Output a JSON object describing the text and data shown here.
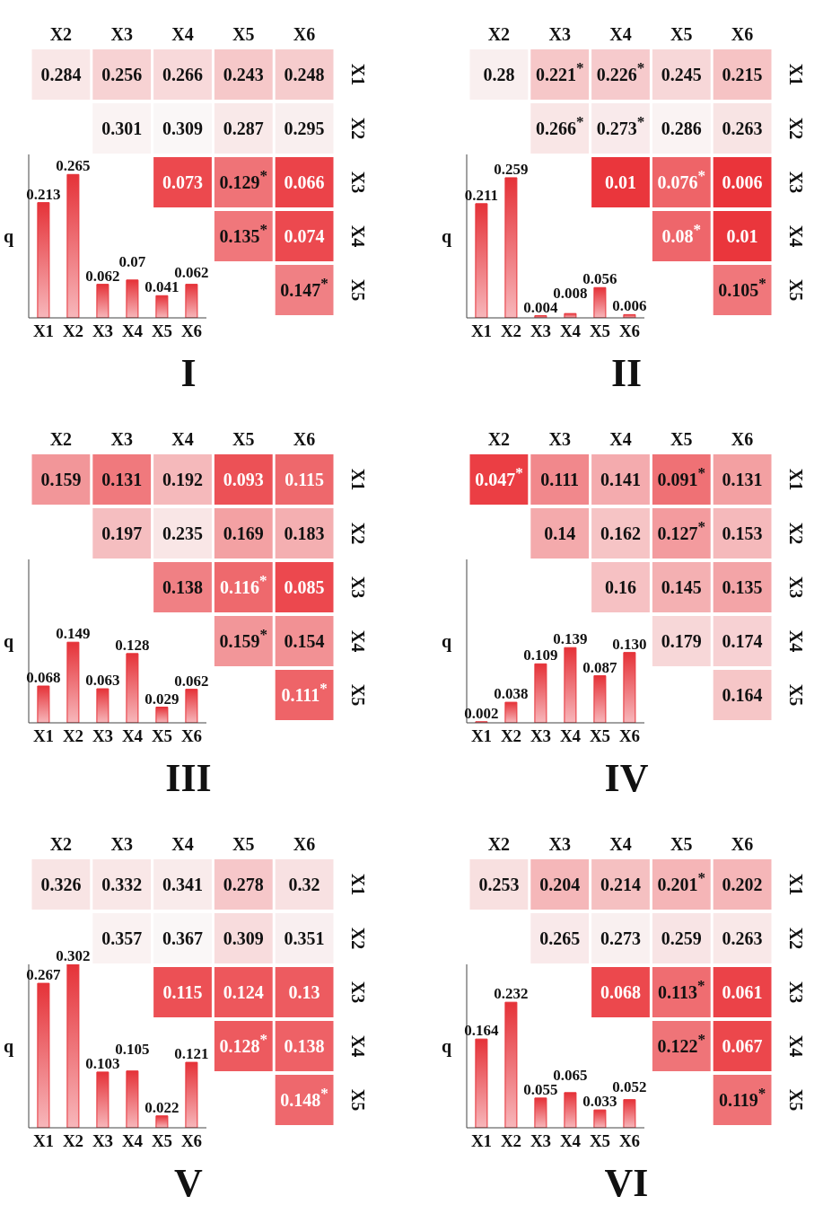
{
  "chart_data": [
    {
      "type": "heatmap",
      "title": "I",
      "categories": [
        "X2",
        "X3",
        "X4",
        "X5",
        "X6"
      ],
      "y_categories": [
        "X1",
        "X2",
        "X3",
        "X4",
        "X5"
      ],
      "cells": [
        [
          0.284,
          0.256,
          0.266,
          0.243,
          0.248
        ],
        [
          null,
          0.301,
          0.309,
          0.287,
          0.295
        ],
        [
          null,
          null,
          0.073,
          0.129,
          0.066
        ],
        [
          null,
          null,
          null,
          0.135,
          0.074
        ],
        [
          null,
          null,
          null,
          null,
          0.147
        ]
      ],
      "cell_labels": [
        [
          "0.284",
          "0.256",
          "0.266",
          "0.243",
          "0.248"
        ],
        [
          null,
          "0.301",
          "0.309",
          "0.287",
          "0.295"
        ],
        [
          null,
          null,
          "0.073",
          "0.129$^{*}$",
          "0.066"
        ],
        [
          null,
          null,
          null,
          "0.135$^{*}$",
          "0.074"
        ],
        [
          null,
          null,
          null,
          null,
          "0.147$^{*}$"
        ]
      ]
    },
    {
      "type": "bar",
      "ylabel": "q",
      "categories": [
        "X1",
        "X2",
        "X3",
        "X4",
        "X5",
        "X6"
      ],
      "values": [
        0.213,
        0.265,
        0.062,
        0.07,
        0.041,
        0.062
      ],
      "value_labels": [
        "0.213",
        "0.265",
        "0.062",
        "0.07",
        "0.041",
        "0.062"
      ],
      "color": "#e53238"
    },
    {
      "type": "heatmap",
      "title": "II",
      "categories": [
        "X2",
        "X3",
        "X4",
        "X5",
        "X6"
      ],
      "y_categories": [
        "X1",
        "X2",
        "X3",
        "X4",
        "X5"
      ],
      "cells": [
        [
          0.28,
          0.221,
          0.226,
          0.245,
          0.215
        ],
        [
          null,
          0.266,
          0.273,
          0.286,
          0.263
        ],
        [
          null,
          null,
          0.01,
          0.076,
          0.006
        ],
        [
          null,
          null,
          null,
          0.08,
          0.01
        ],
        [
          null,
          null,
          null,
          null,
          0.105
        ]
      ],
      "cell_labels": [
        [
          "0.28",
          "0.221$^{*}$",
          "0.226$^{*}$",
          "0.245",
          "0.215"
        ],
        [
          null,
          "0.266$^{*}$",
          "0.273$^{*}$",
          "0.286",
          "0.263"
        ],
        [
          null,
          null,
          "0.01",
          "0.076$^{*}$",
          "0.006"
        ],
        [
          null,
          null,
          null,
          "0.08$^{*}$",
          "0.01"
        ],
        [
          null,
          null,
          null,
          null,
          "0.105$^{*}$"
        ]
      ]
    },
    {
      "type": "bar",
      "ylabel": "q",
      "categories": [
        "X1",
        "X2",
        "X3",
        "X4",
        "X5",
        "X6"
      ],
      "values": [
        0.211,
        0.259,
        0.004,
        0.008,
        0.056,
        0.006
      ],
      "value_labels": [
        "0.211",
        "0.259",
        "0.004",
        "0.008",
        "0.056",
        "0.006"
      ],
      "color": "#e53238"
    },
    {
      "type": "heatmap",
      "title": "III",
      "categories": [
        "X2",
        "X3",
        "X4",
        "X5",
        "X6"
      ],
      "y_categories": [
        "X1",
        "X2",
        "X3",
        "X4",
        "X5"
      ],
      "cells": [
        [
          0.159,
          0.131,
          0.192,
          0.093,
          0.115
        ],
        [
          null,
          0.197,
          0.235,
          0.169,
          0.183
        ],
        [
          null,
          null,
          0.138,
          0.116,
          0.085
        ],
        [
          null,
          null,
          null,
          0.159,
          0.154
        ],
        [
          null,
          null,
          null,
          null,
          0.111
        ]
      ],
      "cell_labels": [
        [
          "0.159",
          "0.131",
          "0.192",
          "0.093",
          "0.115"
        ],
        [
          null,
          "0.197",
          "0.235",
          "0.169",
          "0.183"
        ],
        [
          null,
          null,
          "0.138",
          "0.116$^{*}$",
          "0.085"
        ],
        [
          null,
          null,
          null,
          "0.159$^{*}$",
          "0.154"
        ],
        [
          null,
          null,
          null,
          null,
          "0.111$^{*}$"
        ]
      ]
    },
    {
      "type": "bar",
      "ylabel": "q",
      "categories": [
        "X1",
        "X2",
        "X3",
        "X4",
        "X5",
        "X6"
      ],
      "values": [
        0.068,
        0.149,
        0.063,
        0.128,
        0.029,
        0.062
      ],
      "value_labels": [
        "0.068",
        "0.149",
        "0.063",
        "0.128",
        "0.029",
        "0.062"
      ],
      "color": "#e53238"
    },
    {
      "type": "heatmap",
      "title": "IV",
      "categories": [
        "X2",
        "X3",
        "X4",
        "X5",
        "X6"
      ],
      "y_categories": [
        "X1",
        "X2",
        "X3",
        "X4",
        "X5"
      ],
      "cells": [
        [
          0.047,
          0.111,
          0.141,
          0.091,
          0.131
        ],
        [
          null,
          0.14,
          0.162,
          0.127,
          0.153
        ],
        [
          null,
          null,
          0.16,
          0.145,
          0.135
        ],
        [
          null,
          null,
          null,
          0.179,
          0.174
        ],
        [
          null,
          null,
          null,
          null,
          0.164
        ]
      ],
      "cell_labels": [
        [
          "0.047$^{*}$",
          "0.111",
          "0.141",
          "0.091$^{*}$",
          "0.131"
        ],
        [
          null,
          "0.14",
          "0.162",
          "0.127$^{*}$",
          "0.153"
        ],
        [
          null,
          null,
          "0.16",
          "0.145",
          "0.135"
        ],
        [
          null,
          null,
          null,
          "0.179",
          "0.174"
        ],
        [
          null,
          null,
          null,
          null,
          "0.164"
        ]
      ]
    },
    {
      "type": "bar",
      "ylabel": "q",
      "categories": [
        "X1",
        "X2",
        "X3",
        "X4",
        "X5",
        "X6"
      ],
      "values": [
        0.002,
        0.038,
        0.109,
        0.139,
        0.087,
        0.13
      ],
      "value_labels": [
        "0.002",
        "0.038",
        "0.109",
        "0.139",
        "0.087",
        "0.130"
      ],
      "color": "#e53238"
    },
    {
      "type": "heatmap",
      "title": "V",
      "categories": [
        "X2",
        "X3",
        "X4",
        "X5",
        "X6"
      ],
      "y_categories": [
        "X1",
        "X2",
        "X3",
        "X4",
        "X5"
      ],
      "cells": [
        [
          0.326,
          0.332,
          0.341,
          0.278,
          0.32
        ],
        [
          null,
          0.357,
          0.367,
          0.309,
          0.351
        ],
        [
          null,
          null,
          0.115,
          0.124,
          0.13
        ],
        [
          null,
          null,
          null,
          0.128,
          0.138
        ],
        [
          null,
          null,
          null,
          null,
          0.148
        ]
      ],
      "cell_labels": [
        [
          "0.326",
          "0.332",
          "0.341",
          "0.278",
          "0.32"
        ],
        [
          null,
          "0.357",
          "0.367",
          "0.309",
          "0.351"
        ],
        [
          null,
          null,
          "0.115",
          "0.124",
          "0.13"
        ],
        [
          null,
          null,
          null,
          "0.128$^{*}$",
          "0.138"
        ],
        [
          null,
          null,
          null,
          null,
          "0.148$^{*}$"
        ]
      ]
    },
    {
      "type": "bar",
      "ylabel": "q",
      "categories": [
        "X1",
        "X2",
        "X3",
        "X4",
        "X5",
        "X6"
      ],
      "values": [
        0.267,
        0.302,
        0.103,
        0.105,
        0.022,
        0.121
      ],
      "value_labels": [
        "0.267",
        "0.302",
        "0.103",
        "0.105",
        "0.022",
        "0.121"
      ],
      "color": "#e53238"
    },
    {
      "type": "heatmap",
      "title": "VI",
      "categories": [
        "X2",
        "X3",
        "X4",
        "X5",
        "X6"
      ],
      "y_categories": [
        "X1",
        "X2",
        "X3",
        "X4",
        "X5"
      ],
      "cells": [
        [
          0.253,
          0.204,
          0.214,
          0.201,
          0.202
        ],
        [
          null,
          0.265,
          0.273,
          0.259,
          0.263
        ],
        [
          null,
          null,
          0.068,
          0.113,
          0.061
        ],
        [
          null,
          null,
          null,
          0.122,
          0.067
        ],
        [
          null,
          null,
          null,
          null,
          0.119
        ]
      ],
      "cell_labels": [
        [
          "0.253",
          "0.204",
          "0.214",
          "0.201$^{*}$",
          "0.202"
        ],
        [
          null,
          "0.265",
          "0.273",
          "0.259",
          "0.263"
        ],
        [
          null,
          null,
          "0.068",
          "0.113$^{*}$",
          "0.061"
        ],
        [
          null,
          null,
          null,
          "0.122$^{*}$",
          "0.067"
        ],
        [
          null,
          null,
          null,
          null,
          "0.119$^{*}$"
        ]
      ]
    },
    {
      "type": "bar",
      "ylabel": "q",
      "categories": [
        "X1",
        "X2",
        "X3",
        "X4",
        "X5",
        "X6"
      ],
      "values": [
        0.164,
        0.232,
        0.055,
        0.065,
        0.033,
        0.052
      ],
      "value_labels": [
        "0.164",
        "0.232",
        "0.055",
        "0.065",
        "0.033",
        "0.052"
      ],
      "color": "#e53238"
    }
  ]
}
